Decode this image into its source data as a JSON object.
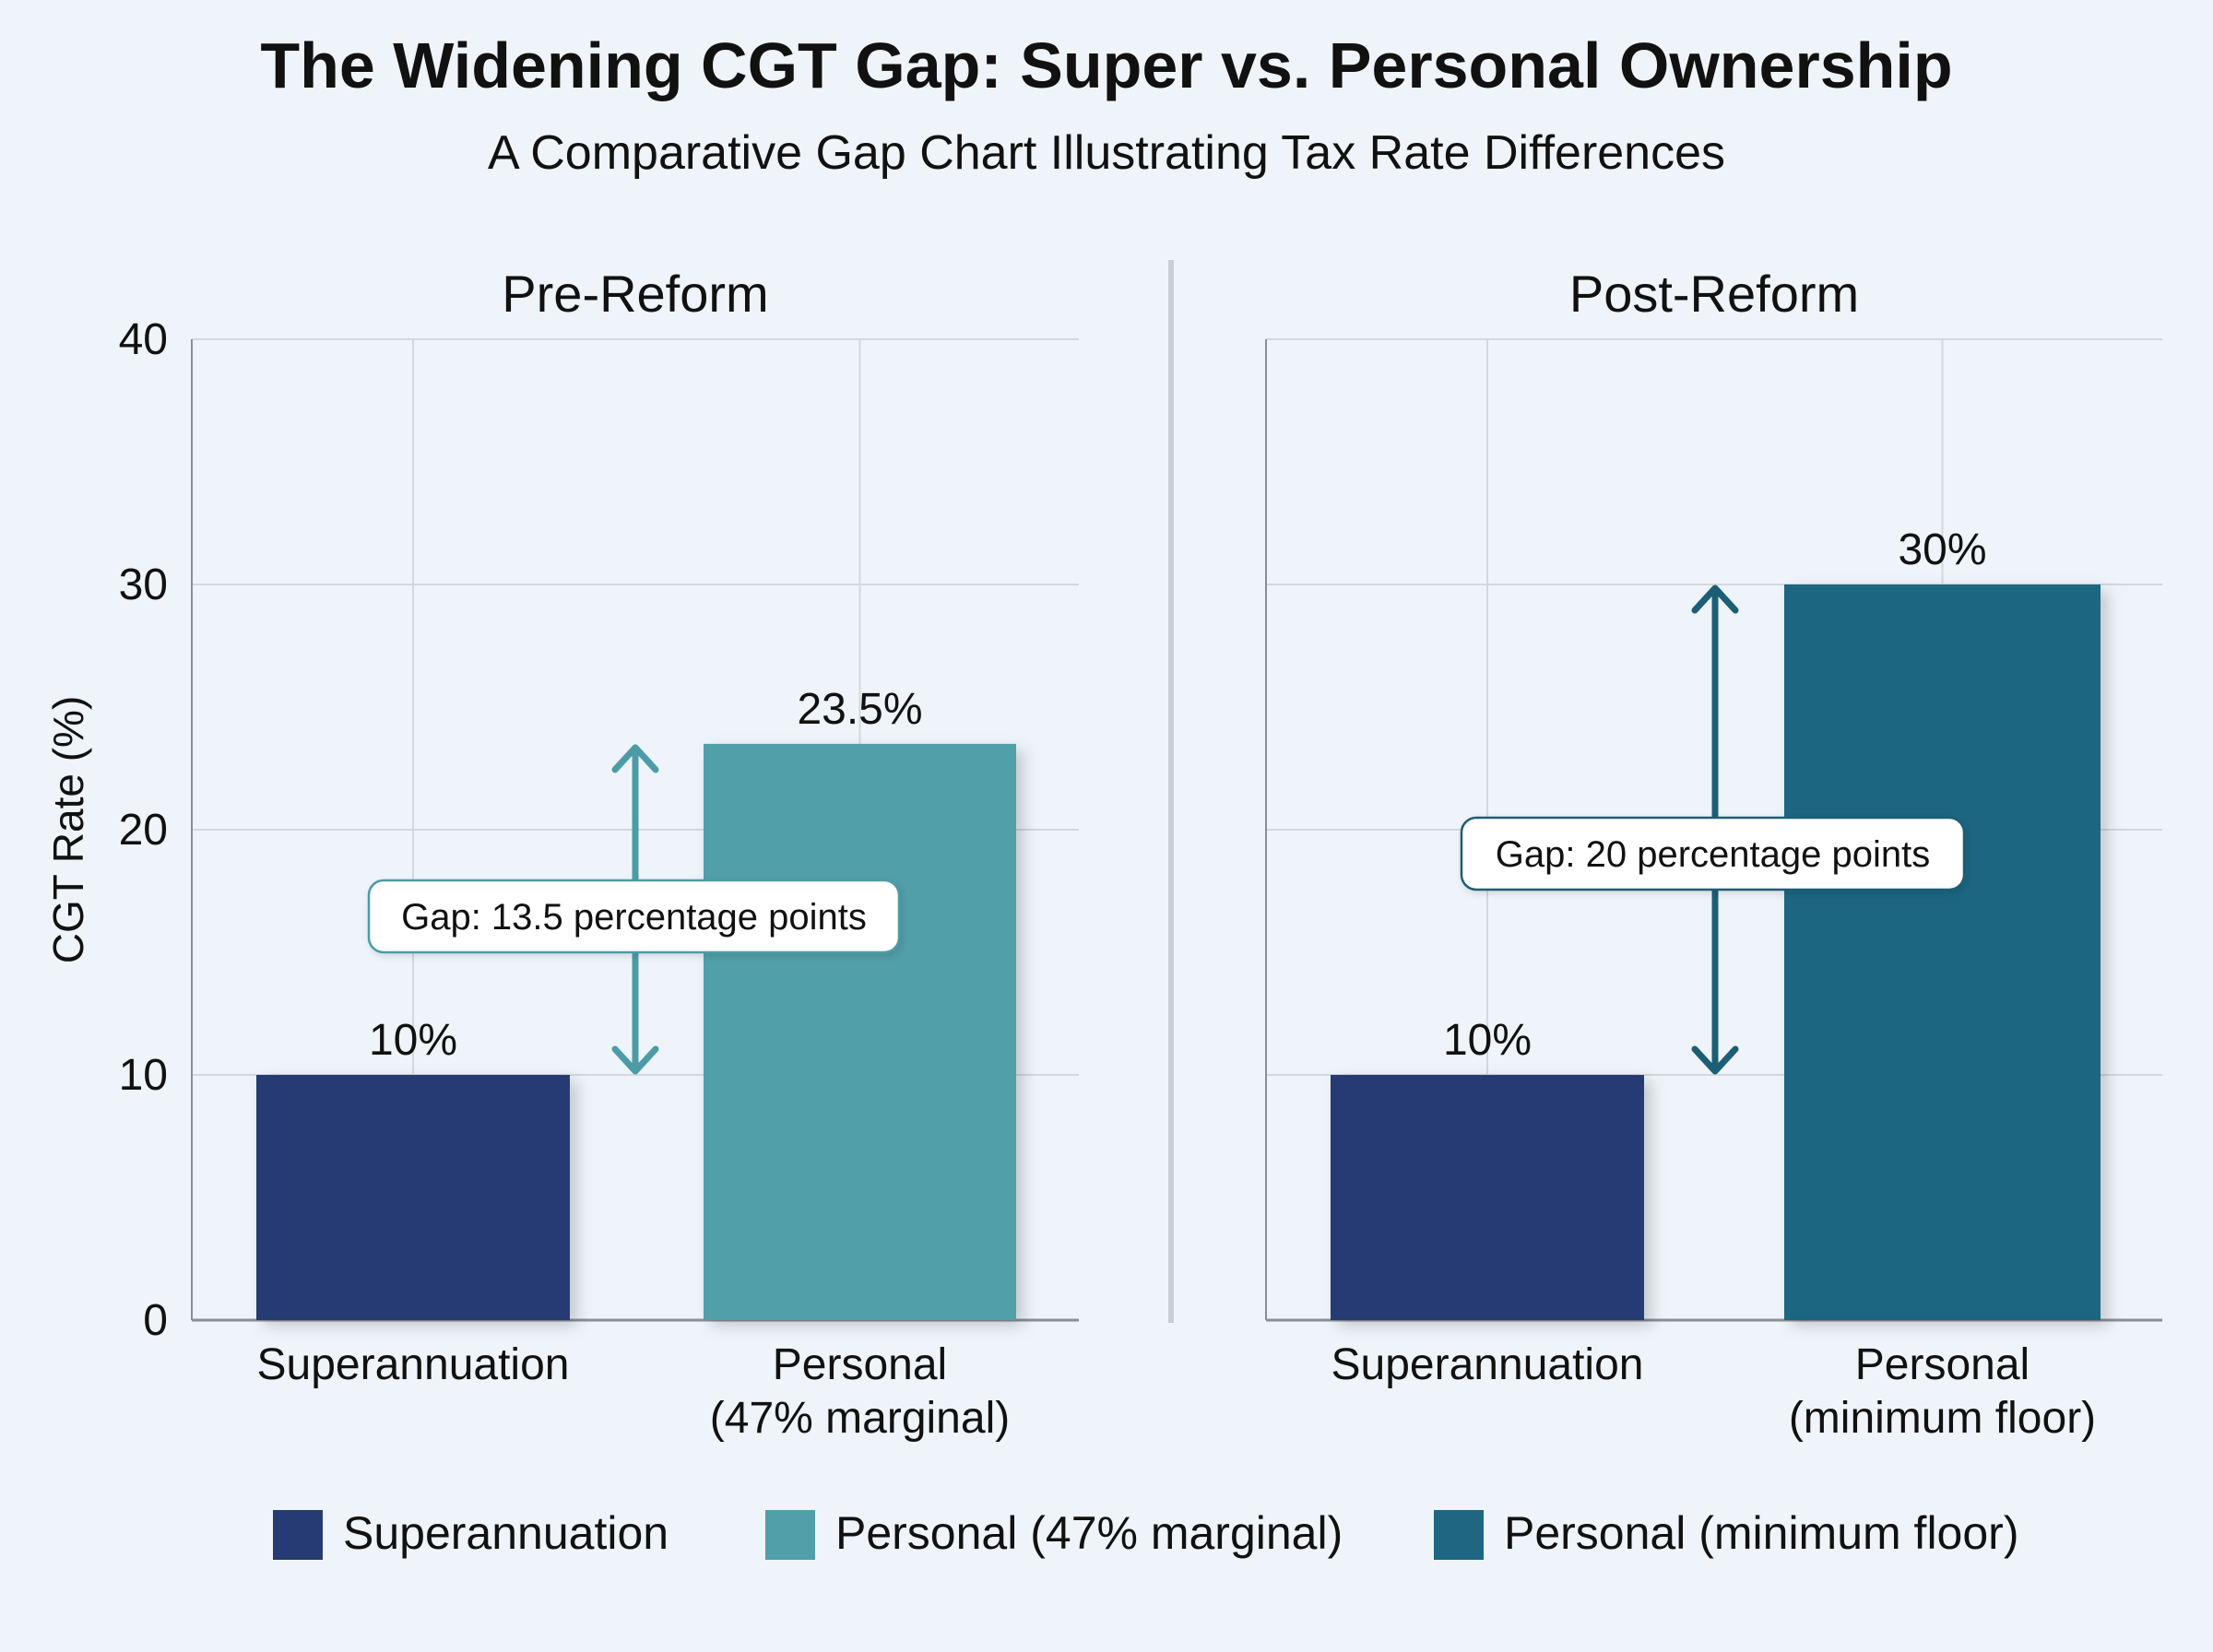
{
  "title": "The Widening CGT Gap: Super vs. Personal Ownership",
  "subtitle": "A Comparative Gap Chart Illustrating Tax Rate Differences",
  "colors": {
    "superannuation": "#263a73",
    "personal_marginal": "#519fa9",
    "personal_floor": "#1e6681",
    "gap_pre": "#4e9ba8",
    "gap_post": "#1c5e76"
  },
  "chart_data": {
    "type": "bar",
    "ylabel": "CGT Rate (%)",
    "ylim": [
      0,
      40
    ],
    "yticks": [
      "0",
      "10",
      "20",
      "30",
      "40"
    ],
    "grid": true,
    "legend_position": "bottom",
    "panels": [
      {
        "title": "Pre-Reform",
        "categories": [
          "Superannuation",
          "Personal\n(47% marginal)"
        ],
        "values": [
          10,
          23.5
        ],
        "value_labels": [
          "10%",
          "23.5%"
        ],
        "series_keys": [
          "superannuation",
          "personal_marginal"
        ],
        "gap": {
          "from": 10,
          "to": 23.5,
          "label": "Gap: 13.5 percentage points"
        }
      },
      {
        "title": "Post-Reform",
        "categories": [
          "Superannuation",
          "Personal\n(minimum floor)"
        ],
        "values": [
          10,
          30
        ],
        "value_labels": [
          "10%",
          "30%"
        ],
        "series_keys": [
          "superannuation",
          "personal_floor"
        ],
        "gap": {
          "from": 10,
          "to": 30,
          "label": "Gap: 20 percentage points"
        }
      }
    ],
    "legend": [
      {
        "key": "superannuation",
        "label": "Superannuation"
      },
      {
        "key": "personal_marginal",
        "label": "Personal (47% marginal)"
      },
      {
        "key": "personal_floor",
        "label": "Personal (minimum floor)"
      }
    ]
  }
}
